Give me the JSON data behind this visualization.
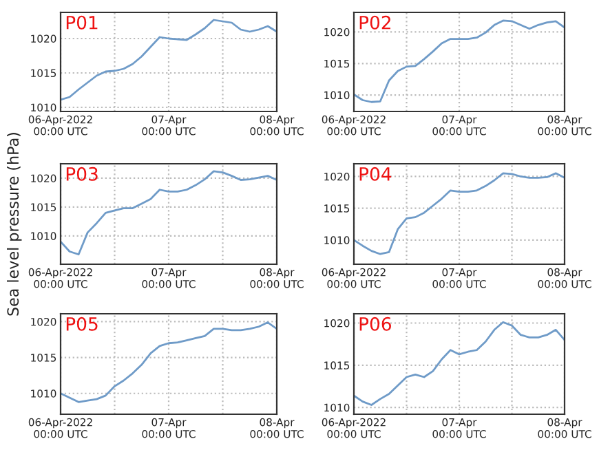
{
  "chart_data": [
    {
      "type": "line",
      "title": "P01",
      "x": [
        "2022-04-06T00:00",
        "2022-04-06T02:00",
        "2022-04-06T04:00",
        "2022-04-06T06:00",
        "2022-04-06T08:00",
        "2022-04-06T10:00",
        "2022-04-06T12:00",
        "2022-04-06T14:00",
        "2022-04-06T16:00",
        "2022-04-06T18:00",
        "2022-04-06T20:00",
        "2022-04-06T22:00",
        "2022-04-07T00:00",
        "2022-04-07T02:00",
        "2022-04-07T04:00",
        "2022-04-07T06:00",
        "2022-04-07T08:00",
        "2022-04-07T10:00",
        "2022-04-07T12:00",
        "2022-04-07T14:00",
        "2022-04-07T16:00",
        "2022-04-07T18:00",
        "2022-04-07T20:00",
        "2022-04-07T22:00",
        "2022-04-08T00:00"
      ],
      "series": [
        {
          "color": "#6f9bc8",
          "values": [
            1011.1,
            1011.5,
            1012.6,
            1013.6,
            1014.6,
            1015.2,
            1015.3,
            1015.6,
            1016.3,
            1017.4,
            1018.8,
            1020.2,
            1020.0,
            1019.9,
            1019.8,
            1020.6,
            1021.5,
            1022.7,
            1022.5,
            1022.3,
            1021.3,
            1021.0,
            1021.3,
            1021.8,
            1021.0
          ]
        }
      ],
      "xlim": [
        "2022-04-06T00:00",
        "2022-04-08T00:00"
      ],
      "xticks": [
        {
          "value": "2022-04-06T00:00",
          "label": "06-Apr-2022\n00:00 UTC"
        },
        {
          "value": "2022-04-06T12:00",
          "label": null
        },
        {
          "value": "2022-04-07T00:00",
          "label": "07-Apr\n00:00 UTC"
        },
        {
          "value": "2022-04-07T12:00",
          "label": null
        },
        {
          "value": "2022-04-08T00:00",
          "label": "08-Apr\n00:00 UTC"
        }
      ],
      "ylim": [
        1009.4,
        1023.8
      ],
      "yticks": [
        1010,
        1015,
        1020
      ],
      "grid": true,
      "line_style": "solid"
    },
    {
      "type": "line",
      "title": "P02",
      "x": [
        "2022-04-06T00:00",
        "2022-04-06T02:00",
        "2022-04-06T04:00",
        "2022-04-06T06:00",
        "2022-04-06T08:00",
        "2022-04-06T10:00",
        "2022-04-06T12:00",
        "2022-04-06T14:00",
        "2022-04-06T16:00",
        "2022-04-06T18:00",
        "2022-04-06T20:00",
        "2022-04-06T22:00",
        "2022-04-07T00:00",
        "2022-04-07T02:00",
        "2022-04-07T04:00",
        "2022-04-07T06:00",
        "2022-04-07T08:00",
        "2022-04-07T10:00",
        "2022-04-07T12:00",
        "2022-04-07T14:00",
        "2022-04-07T16:00",
        "2022-04-07T18:00",
        "2022-04-07T20:00",
        "2022-04-07T22:00",
        "2022-04-08T00:00"
      ],
      "series": [
        {
          "color": "#6f9bc8",
          "values": [
            1010.1,
            1009.2,
            1008.9,
            1009.0,
            1012.3,
            1013.8,
            1014.5,
            1014.6,
            1015.7,
            1016.9,
            1018.2,
            1018.9,
            1018.9,
            1018.9,
            1019.1,
            1019.9,
            1021.1,
            1021.8,
            1021.7,
            1021.1,
            1020.5,
            1021.1,
            1021.5,
            1021.7,
            1020.7
          ]
        }
      ],
      "xlim": [
        "2022-04-06T00:00",
        "2022-04-08T00:00"
      ],
      "xticks": [
        {
          "value": "2022-04-06T00:00",
          "label": "06-Apr-2022\n00:00 UTC"
        },
        {
          "value": "2022-04-06T12:00",
          "label": null
        },
        {
          "value": "2022-04-07T00:00",
          "label": "07-Apr\n00:00 UTC"
        },
        {
          "value": "2022-04-07T12:00",
          "label": null
        },
        {
          "value": "2022-04-08T00:00",
          "label": "08-Apr\n00:00 UTC"
        }
      ],
      "ylim": [
        1007.4,
        1023.1
      ],
      "yticks": [
        1010,
        1015,
        1020
      ],
      "grid": true,
      "line_style": "solid"
    },
    {
      "type": "line",
      "title": "P03",
      "ylabel": "Sea level pressure (hPa)",
      "x": [
        "2022-04-06T00:00",
        "2022-04-06T02:00",
        "2022-04-06T04:00",
        "2022-04-06T06:00",
        "2022-04-06T08:00",
        "2022-04-06T10:00",
        "2022-04-06T12:00",
        "2022-04-06T14:00",
        "2022-04-06T16:00",
        "2022-04-06T18:00",
        "2022-04-06T20:00",
        "2022-04-06T22:00",
        "2022-04-07T00:00",
        "2022-04-07T02:00",
        "2022-04-07T04:00",
        "2022-04-07T06:00",
        "2022-04-07T08:00",
        "2022-04-07T10:00",
        "2022-04-07T12:00",
        "2022-04-07T14:00",
        "2022-04-07T16:00",
        "2022-04-07T18:00",
        "2022-04-07T20:00",
        "2022-04-07T22:00",
        "2022-04-08T00:00"
      ],
      "series": [
        {
          "color": "#6f9bc8",
          "values": [
            1009.0,
            1007.3,
            1006.8,
            1010.6,
            1012.2,
            1014.0,
            1014.4,
            1014.8,
            1014.8,
            1015.6,
            1016.4,
            1018.0,
            1017.7,
            1017.7,
            1018.0,
            1018.8,
            1019.8,
            1021.2,
            1021.0,
            1020.4,
            1019.7,
            1019.8,
            1020.1,
            1020.4,
            1019.7
          ]
        }
      ],
      "xlim": [
        "2022-04-06T00:00",
        "2022-04-08T00:00"
      ],
      "xticks": [
        {
          "value": "2022-04-06T00:00",
          "label": "06-Apr-2022\n00:00 UTC"
        },
        {
          "value": "2022-04-06T12:00",
          "label": null
        },
        {
          "value": "2022-04-07T00:00",
          "label": "07-Apr\n00:00 UTC"
        },
        {
          "value": "2022-04-07T12:00",
          "label": null
        },
        {
          "value": "2022-04-08T00:00",
          "label": "08-Apr\n00:00 UTC"
        }
      ],
      "ylim": [
        1005.1,
        1022.5
      ],
      "yticks": [
        1010,
        1015,
        1020
      ],
      "grid": true,
      "line_style": "solid"
    },
    {
      "type": "line",
      "title": "P04",
      "x": [
        "2022-04-06T00:00",
        "2022-04-06T02:00",
        "2022-04-06T04:00",
        "2022-04-06T06:00",
        "2022-04-06T08:00",
        "2022-04-06T10:00",
        "2022-04-06T12:00",
        "2022-04-06T14:00",
        "2022-04-06T16:00",
        "2022-04-06T18:00",
        "2022-04-06T20:00",
        "2022-04-06T22:00",
        "2022-04-07T00:00",
        "2022-04-07T02:00",
        "2022-04-07T04:00",
        "2022-04-07T06:00",
        "2022-04-07T08:00",
        "2022-04-07T10:00",
        "2022-04-07T12:00",
        "2022-04-07T14:00",
        "2022-04-07T16:00",
        "2022-04-07T18:00",
        "2022-04-07T20:00",
        "2022-04-07T22:00",
        "2022-04-08T00:00"
      ],
      "series": [
        {
          "color": "#6f9bc8",
          "values": [
            1010.0,
            1009.1,
            1008.3,
            1007.8,
            1008.1,
            1011.7,
            1013.4,
            1013.6,
            1014.3,
            1015.4,
            1016.5,
            1017.8,
            1017.6,
            1017.6,
            1017.8,
            1018.5,
            1019.4,
            1020.5,
            1020.4,
            1020.0,
            1019.8,
            1019.8,
            1019.9,
            1020.5,
            1019.8
          ]
        }
      ],
      "xlim": [
        "2022-04-06T00:00",
        "2022-04-08T00:00"
      ],
      "xticks": [
        {
          "value": "2022-04-06T00:00",
          "label": "06-Apr-2022\n00:00 UTC"
        },
        {
          "value": "2022-04-06T12:00",
          "label": null
        },
        {
          "value": "2022-04-07T00:00",
          "label": "07-Apr\n00:00 UTC"
        },
        {
          "value": "2022-04-07T12:00",
          "label": null
        },
        {
          "value": "2022-04-08T00:00",
          "label": "08-Apr\n00:00 UTC"
        }
      ],
      "ylim": [
        1006.2,
        1022.0
      ],
      "yticks": [
        1010,
        1015,
        1020
      ],
      "grid": true,
      "line_style": "solid"
    },
    {
      "type": "line",
      "title": "P05",
      "x": [
        "2022-04-06T00:00",
        "2022-04-06T02:00",
        "2022-04-06T04:00",
        "2022-04-06T06:00",
        "2022-04-06T08:00",
        "2022-04-06T10:00",
        "2022-04-06T12:00",
        "2022-04-06T14:00",
        "2022-04-06T16:00",
        "2022-04-06T18:00",
        "2022-04-06T20:00",
        "2022-04-06T22:00",
        "2022-04-07T00:00",
        "2022-04-07T02:00",
        "2022-04-07T04:00",
        "2022-04-07T06:00",
        "2022-04-07T08:00",
        "2022-04-07T10:00",
        "2022-04-07T12:00",
        "2022-04-07T14:00",
        "2022-04-07T16:00",
        "2022-04-07T18:00",
        "2022-04-07T20:00",
        "2022-04-07T22:00",
        "2022-04-08T00:00"
      ],
      "series": [
        {
          "color": "#6f9bc8",
          "values": [
            1010.0,
            1009.4,
            1008.8,
            1009.0,
            1009.2,
            1009.7,
            1011.0,
            1011.8,
            1012.8,
            1014.0,
            1015.6,
            1016.6,
            1017.0,
            1017.1,
            1017.4,
            1017.7,
            1018.0,
            1019.0,
            1019.0,
            1018.8,
            1018.8,
            1019.0,
            1019.3,
            1019.9,
            1019.0
          ]
        }
      ],
      "xlim": [
        "2022-04-06T00:00",
        "2022-04-08T00:00"
      ],
      "xticks": [
        {
          "value": "2022-04-06T00:00",
          "label": "06-Apr-2022\n00:00 UTC"
        },
        {
          "value": "2022-04-06T12:00",
          "label": null
        },
        {
          "value": "2022-04-07T00:00",
          "label": "07-Apr\n00:00 UTC"
        },
        {
          "value": "2022-04-07T12:00",
          "label": null
        },
        {
          "value": "2022-04-08T00:00",
          "label": "08-Apr\n00:00 UTC"
        }
      ],
      "ylim": [
        1007.1,
        1021.1
      ],
      "yticks": [
        1010,
        1015,
        1020
      ],
      "grid": true,
      "line_style": "solid"
    },
    {
      "type": "line",
      "title": "P06",
      "x": [
        "2022-04-06T00:00",
        "2022-04-06T02:00",
        "2022-04-06T04:00",
        "2022-04-06T06:00",
        "2022-04-06T08:00",
        "2022-04-06T10:00",
        "2022-04-06T12:00",
        "2022-04-06T14:00",
        "2022-04-06T16:00",
        "2022-04-06T18:00",
        "2022-04-06T20:00",
        "2022-04-06T22:00",
        "2022-04-07T00:00",
        "2022-04-07T02:00",
        "2022-04-07T04:00",
        "2022-04-07T06:00",
        "2022-04-07T08:00",
        "2022-04-07T10:00",
        "2022-04-07T12:00",
        "2022-04-07T14:00",
        "2022-04-07T16:00",
        "2022-04-07T18:00",
        "2022-04-07T20:00",
        "2022-04-07T22:00",
        "2022-04-08T00:00"
      ],
      "series": [
        {
          "color": "#6f9bc8",
          "values": [
            1011.4,
            1010.7,
            1010.3,
            1011.0,
            1011.6,
            1012.6,
            1013.6,
            1013.9,
            1013.6,
            1014.3,
            1015.7,
            1016.8,
            1016.3,
            1016.6,
            1016.8,
            1017.8,
            1019.2,
            1020.1,
            1019.7,
            1018.6,
            1018.3,
            1018.3,
            1018.6,
            1019.2,
            1018.0
          ]
        }
      ],
      "xlim": [
        "2022-04-06T00:00",
        "2022-04-08T00:00"
      ],
      "xticks": [
        {
          "value": "2022-04-06T00:00",
          "label": "06-Apr-2022\n00:00 UTC"
        },
        {
          "value": "2022-04-06T12:00",
          "label": null
        },
        {
          "value": "2022-04-07T00:00",
          "label": "07-Apr\n00:00 UTC"
        },
        {
          "value": "2022-04-07T12:00",
          "label": null
        },
        {
          "value": "2022-04-08T00:00",
          "label": "08-Apr\n00:00 UTC"
        }
      ],
      "ylim": [
        1009.2,
        1021.1
      ],
      "yticks": [
        1010,
        1015,
        1020
      ],
      "grid": true,
      "line_style": "solid"
    }
  ]
}
